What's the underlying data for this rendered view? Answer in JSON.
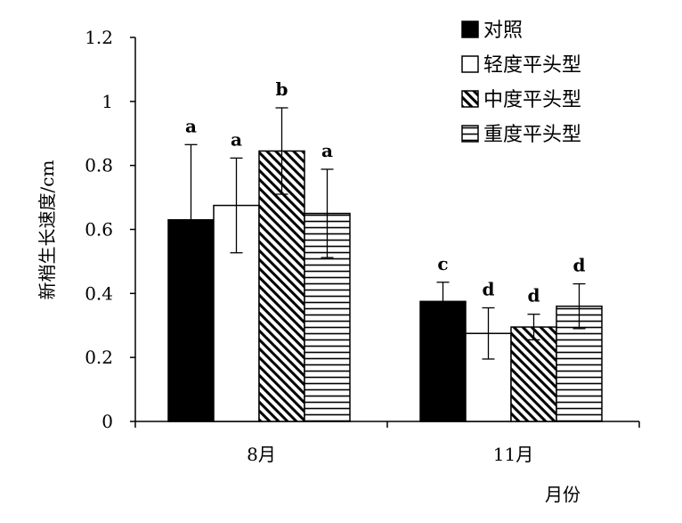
{
  "chart_data": {
    "type": "bar",
    "ylabel": "新梢生长速度/cm",
    "xlabel": "月份",
    "categories": [
      "8月",
      "11月"
    ],
    "ylim": [
      0,
      1.2
    ],
    "yticks": [
      "0",
      "0.2",
      "0.4",
      "0.6",
      "0.8",
      "1",
      "1.2"
    ],
    "legend_position": "top-right",
    "series": [
      {
        "name": "对照",
        "fill": "solid",
        "values": [
          0.63,
          0.375
        ],
        "errors": [
          0.235,
          0.06
        ],
        "letters": [
          "a",
          "c"
        ]
      },
      {
        "name": "轻度平头型",
        "fill": "empty",
        "values": [
          0.675,
          0.275
        ],
        "errors": [
          0.148,
          0.08
        ],
        "letters": [
          "a",
          "d"
        ]
      },
      {
        "name": "中度平头型",
        "fill": "diagonal",
        "values": [
          0.845,
          0.295
        ],
        "errors": [
          0.135,
          0.04
        ],
        "letters": [
          "b",
          "d"
        ]
      },
      {
        "name": "重度平头型",
        "fill": "horizontal",
        "values": [
          0.65,
          0.36
        ],
        "errors": [
          0.138,
          0.07
        ],
        "letters": [
          "a",
          "d"
        ]
      }
    ]
  }
}
